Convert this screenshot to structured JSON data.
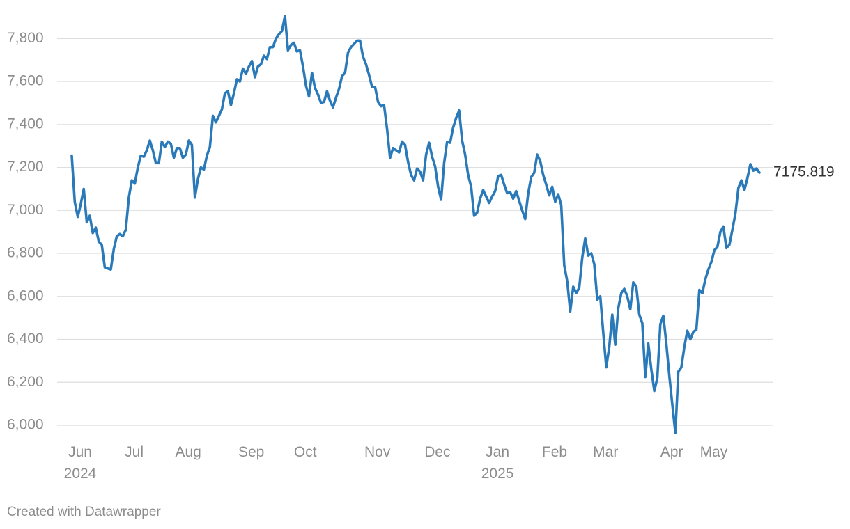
{
  "chart_data": {
    "type": "line",
    "credit": "Created with Datawrapper",
    "color": "#2a7ab9",
    "grid": true,
    "ylim": [
      5940,
      7920
    ],
    "yticks": [
      {
        "value": 6000,
        "label": "6,000"
      },
      {
        "value": 6200,
        "label": "6,200"
      },
      {
        "value": 6400,
        "label": "6,400"
      },
      {
        "value": 6600,
        "label": "6,600"
      },
      {
        "value": 6800,
        "label": "6,800"
      },
      {
        "value": 7000,
        "label": "7,000"
      },
      {
        "value": 7200,
        "label": "7,200"
      },
      {
        "value": 7400,
        "label": "7,400"
      },
      {
        "value": 7600,
        "label": "7,600"
      },
      {
        "value": 7800,
        "label": "7,800"
      }
    ],
    "categories": [
      "Jun 2024",
      null,
      null,
      null,
      null,
      null,
      null,
      null,
      null,
      null,
      null,
      null,
      null,
      null,
      null,
      null,
      null,
      null,
      "Jul",
      null,
      null,
      null,
      null,
      null,
      null,
      null,
      null,
      null,
      null,
      null,
      null,
      null,
      null,
      null,
      null,
      null,
      "Aug",
      null,
      null,
      null,
      null,
      null,
      null,
      null,
      null,
      null,
      null,
      null,
      null,
      null,
      null,
      null,
      null,
      null,
      null,
      null,
      null,
      "Sep",
      null,
      null,
      null,
      null,
      null,
      null,
      null,
      null,
      null,
      null,
      null,
      null,
      null,
      null,
      null,
      null,
      null,
      "Oct",
      null,
      null,
      null,
      null,
      null,
      null,
      null,
      null,
      null,
      null,
      null,
      null,
      null,
      null,
      null,
      null,
      null,
      null,
      null,
      null,
      null,
      null,
      null,
      "Nov",
      null,
      null,
      null,
      null,
      null,
      null,
      null,
      null,
      null,
      null,
      null,
      null,
      null,
      null,
      null,
      null,
      null,
      null,
      null,
      "Dec",
      null,
      null,
      null,
      null,
      null,
      null,
      null,
      null,
      null,
      null,
      null,
      null,
      null,
      null,
      null,
      null,
      null,
      null,
      null,
      "Jan 2025",
      null,
      null,
      null,
      null,
      null,
      null,
      null,
      null,
      null,
      null,
      null,
      null,
      null,
      null,
      null,
      null,
      null,
      null,
      "Feb",
      null,
      null,
      null,
      null,
      null,
      null,
      null,
      null,
      null,
      null,
      null,
      null,
      null,
      null,
      null,
      null,
      "Mar",
      null,
      null,
      null,
      null,
      null,
      null,
      null,
      null,
      null,
      null,
      null,
      null,
      null,
      null,
      null,
      null,
      null,
      null,
      null,
      null,
      null,
      "Apr",
      null,
      null,
      null,
      null,
      null,
      null,
      null,
      null,
      null,
      null,
      null,
      null,
      null,
      "May",
      null,
      null,
      null,
      null,
      null,
      null,
      null,
      null,
      null,
      null,
      null,
      null,
      null,
      null,
      null,
      null,
      null,
      null
    ],
    "values": [
      7255,
      7040,
      6970,
      7030,
      7100,
      6945,
      6975,
      6895,
      6920,
      6855,
      6840,
      6735,
      6730,
      6725,
      6820,
      6880,
      6890,
      6880,
      6910,
      7060,
      7140,
      7125,
      7200,
      7255,
      7250,
      7280,
      7325,
      7280,
      7220,
      7220,
      7320,
      7295,
      7320,
      7310,
      7245,
      7290,
      7290,
      7245,
      7260,
      7325,
      7305,
      7060,
      7145,
      7200,
      7190,
      7255,
      7295,
      7440,
      7410,
      7440,
      7470,
      7545,
      7555,
      7490,
      7545,
      7610,
      7600,
      7660,
      7635,
      7670,
      7695,
      7620,
      7670,
      7680,
      7720,
      7705,
      7760,
      7760,
      7800,
      7820,
      7835,
      7905,
      7745,
      7770,
      7780,
      7740,
      7745,
      7670,
      7580,
      7530,
      7640,
      7570,
      7540,
      7500,
      7505,
      7555,
      7510,
      7480,
      7525,
      7565,
      7625,
      7640,
      7735,
      7760,
      7775,
      7790,
      7790,
      7715,
      7680,
      7630,
      7575,
      7575,
      7505,
      7485,
      7490,
      7380,
      7245,
      7290,
      7280,
      7270,
      7320,
      7305,
      7225,
      7165,
      7140,
      7195,
      7180,
      7140,
      7260,
      7315,
      7250,
      7205,
      7110,
      7050,
      7220,
      7320,
      7315,
      7385,
      7430,
      7465,
      7325,
      7260,
      7165,
      7110,
      6975,
      6990,
      7055,
      7095,
      7065,
      7035,
      7065,
      7090,
      7160,
      7165,
      7120,
      7080,
      7085,
      7055,
      7090,
      7045,
      7000,
      6960,
      7080,
      7155,
      7175,
      7260,
      7230,
      7165,
      7120,
      7070,
      7110,
      7040,
      7075,
      7025,
      6745,
      6670,
      6530,
      6645,
      6615,
      6640,
      6780,
      6870,
      6790,
      6800,
      6750,
      6585,
      6600,
      6430,
      6270,
      6365,
      6515,
      6375,
      6545,
      6615,
      6635,
      6600,
      6540,
      6665,
      6645,
      6515,
      6475,
      6225,
      6380,
      6260,
      6160,
      6220,
      6470,
      6510,
      6380,
      6230,
      6095,
      5965,
      6250,
      6270,
      6365,
      6440,
      6400,
      6435,
      6445,
      6630,
      6615,
      6680,
      6725,
      6760,
      6815,
      6830,
      6900,
      6925,
      6825,
      6840,
      6910,
      6985,
      7105,
      7140,
      7095,
      7150,
      7215,
      7185,
      7195,
      7175.819
    ]
  }
}
